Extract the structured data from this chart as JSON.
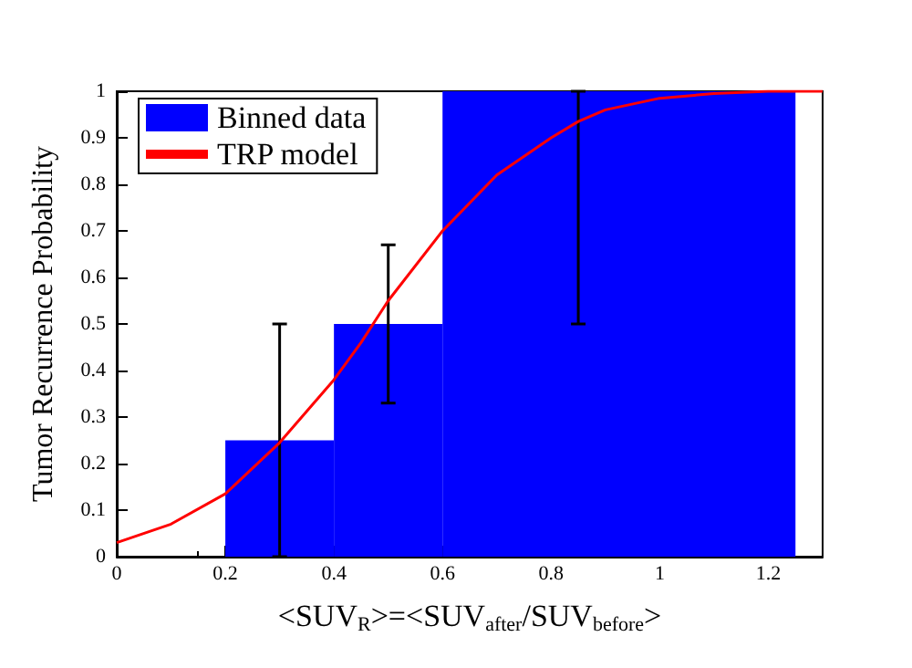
{
  "chart_data": {
    "type": "histogram",
    "xlabel": "<SUV$_{R}$>=<SUV$_{after}$/SUV$_{before}$>",
    "ylabel": "Tumor Recurrence Probability",
    "bins": [
      0.2,
      0.4,
      0.6,
      1.25
    ],
    "xlim": [
      0,
      1.3
    ],
    "xticks": [
      0,
      0.2,
      0.4,
      0.6,
      0.8,
      1,
      1.2
    ],
    "ylim": [
      0,
      1
    ],
    "yticks": [
      0,
      0.1,
      0.2,
      0.3,
      0.4,
      0.5,
      0.6,
      0.7,
      0.8,
      0.9,
      1
    ],
    "legend": "top left",
    "marker": "none",
    "series": [
      {
        "name": "Binned data",
        "color": "#0000ff",
        "values": [
          0.25,
          0.5,
          1
        ],
        "x": [
          0.3,
          0.5,
          0.85
        ],
        "errors": [
          [
            0,
            0.5
          ],
          [
            0.33,
            0.67
          ],
          [
            0.5,
            1
          ]
        ]
      },
      {
        "name": "TRP model",
        "type": "line",
        "color": "#ff0000",
        "x": [
          0,
          0.1,
          0.2,
          0.3,
          0.4,
          0.45,
          0.5,
          0.6,
          0.7,
          0.8,
          0.85,
          0.9,
          1,
          1.1,
          1.2,
          1.3
        ],
        "values": [
          0.03,
          0.07,
          0.135,
          0.245,
          0.38,
          0.46,
          0.55,
          0.7,
          0.82,
          0.9,
          0.935,
          0.96,
          0.985,
          0.995,
          1,
          1
        ]
      }
    ]
  }
}
